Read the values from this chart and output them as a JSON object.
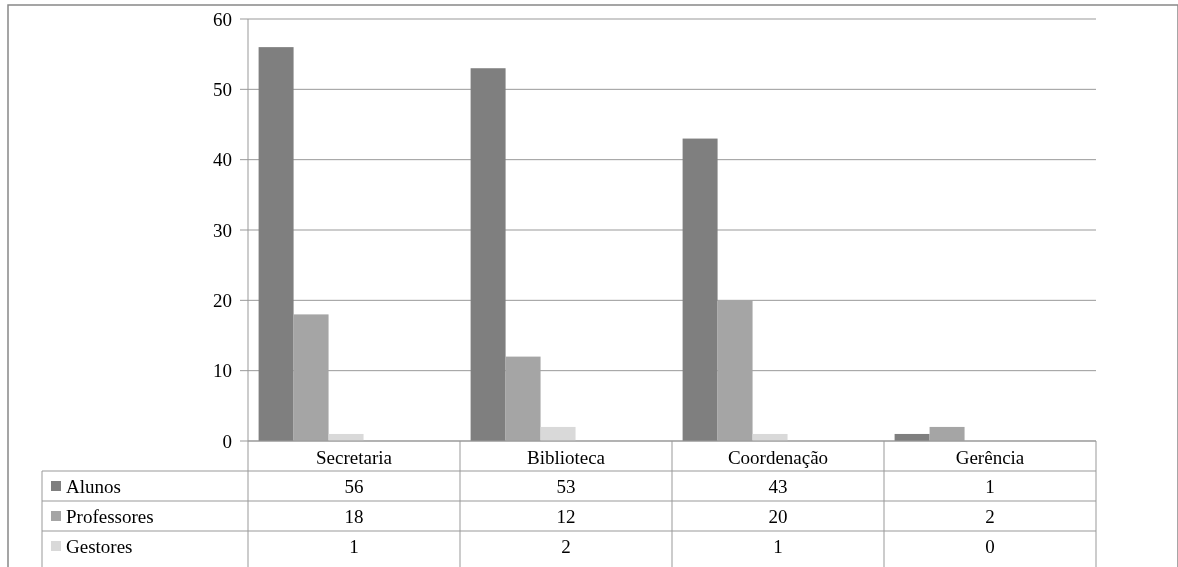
{
  "chart_data": {
    "type": "bar",
    "categories": [
      "Secretaria",
      "Biblioteca",
      "Coordenação",
      "Gerência"
    ],
    "series": [
      {
        "name": "Alunos",
        "color": "#7f7f7f",
        "values": [
          56,
          53,
          43,
          1
        ]
      },
      {
        "name": "Professores",
        "color": "#a5a5a5",
        "values": [
          18,
          12,
          20,
          2
        ]
      },
      {
        "name": "Gestores",
        "color": "#d9d9d9",
        "values": [
          1,
          2,
          1,
          0
        ]
      }
    ],
    "ylim": [
      0,
      60
    ],
    "yticks": [
      0,
      10,
      20,
      30,
      40,
      50,
      60
    ],
    "grid": "y",
    "data_labels": true,
    "legend": "bottom"
  }
}
